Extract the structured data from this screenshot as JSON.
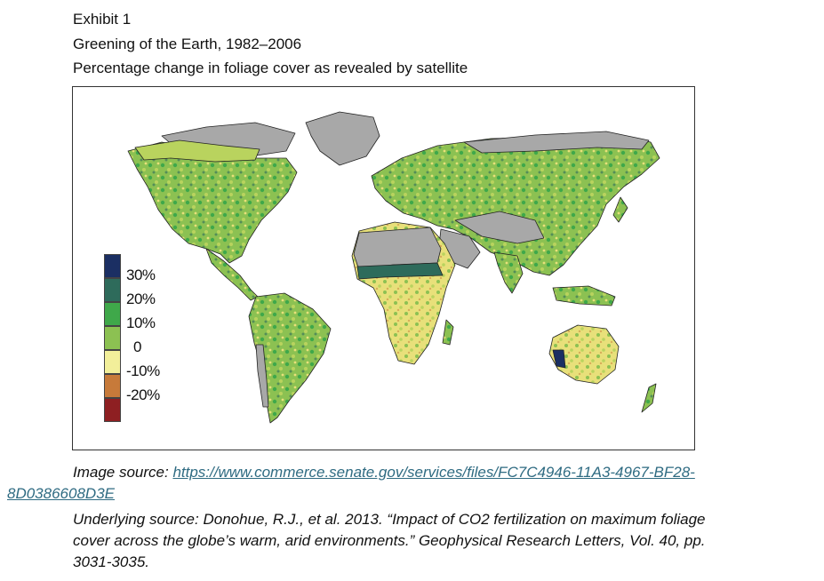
{
  "header": {
    "exhibit": "Exhibit 1",
    "title": "Greening of the Earth, 1982–2006",
    "subtitle": "Percentage change in foliage cover as revealed by satellite"
  },
  "legend": {
    "items": [
      {
        "label": "30%",
        "color": "#1b2f63"
      },
      {
        "label": "20%",
        "color": "#2e6b5b"
      },
      {
        "label": "10%",
        "color": "#3fa84a"
      },
      {
        "label": "0",
        "color": "#8cc152"
      },
      {
        "label": "-10%",
        "color": "#f2ef9a"
      },
      {
        "label": "-20%",
        "color": "#c77a3a"
      },
      {
        "label": "",
        "color": "#8e1f22"
      }
    ]
  },
  "map_colors": {
    "no_data": "#a8a8a8",
    "land_green": "#8cc152",
    "land_yellow": "#e8e07a",
    "coast": "#222222"
  },
  "sources": {
    "image_prefix": "Image source: ",
    "image_url_part1": "https://www.commerce.senate.gov/services/files/FC7C4946-11A3-4967-BF28-",
    "image_url_part2": "8D0386608D3E",
    "underlying_line1": "Underlying source: Donohue, R.J., et al. 2013. “Impact of CO2 fertilization on maximum foliage",
    "underlying_line2": "cover across the globe’s warm, arid environments.” Geophysical Research Letters, Vol. 40, pp.",
    "underlying_line3": "3031-3035."
  }
}
